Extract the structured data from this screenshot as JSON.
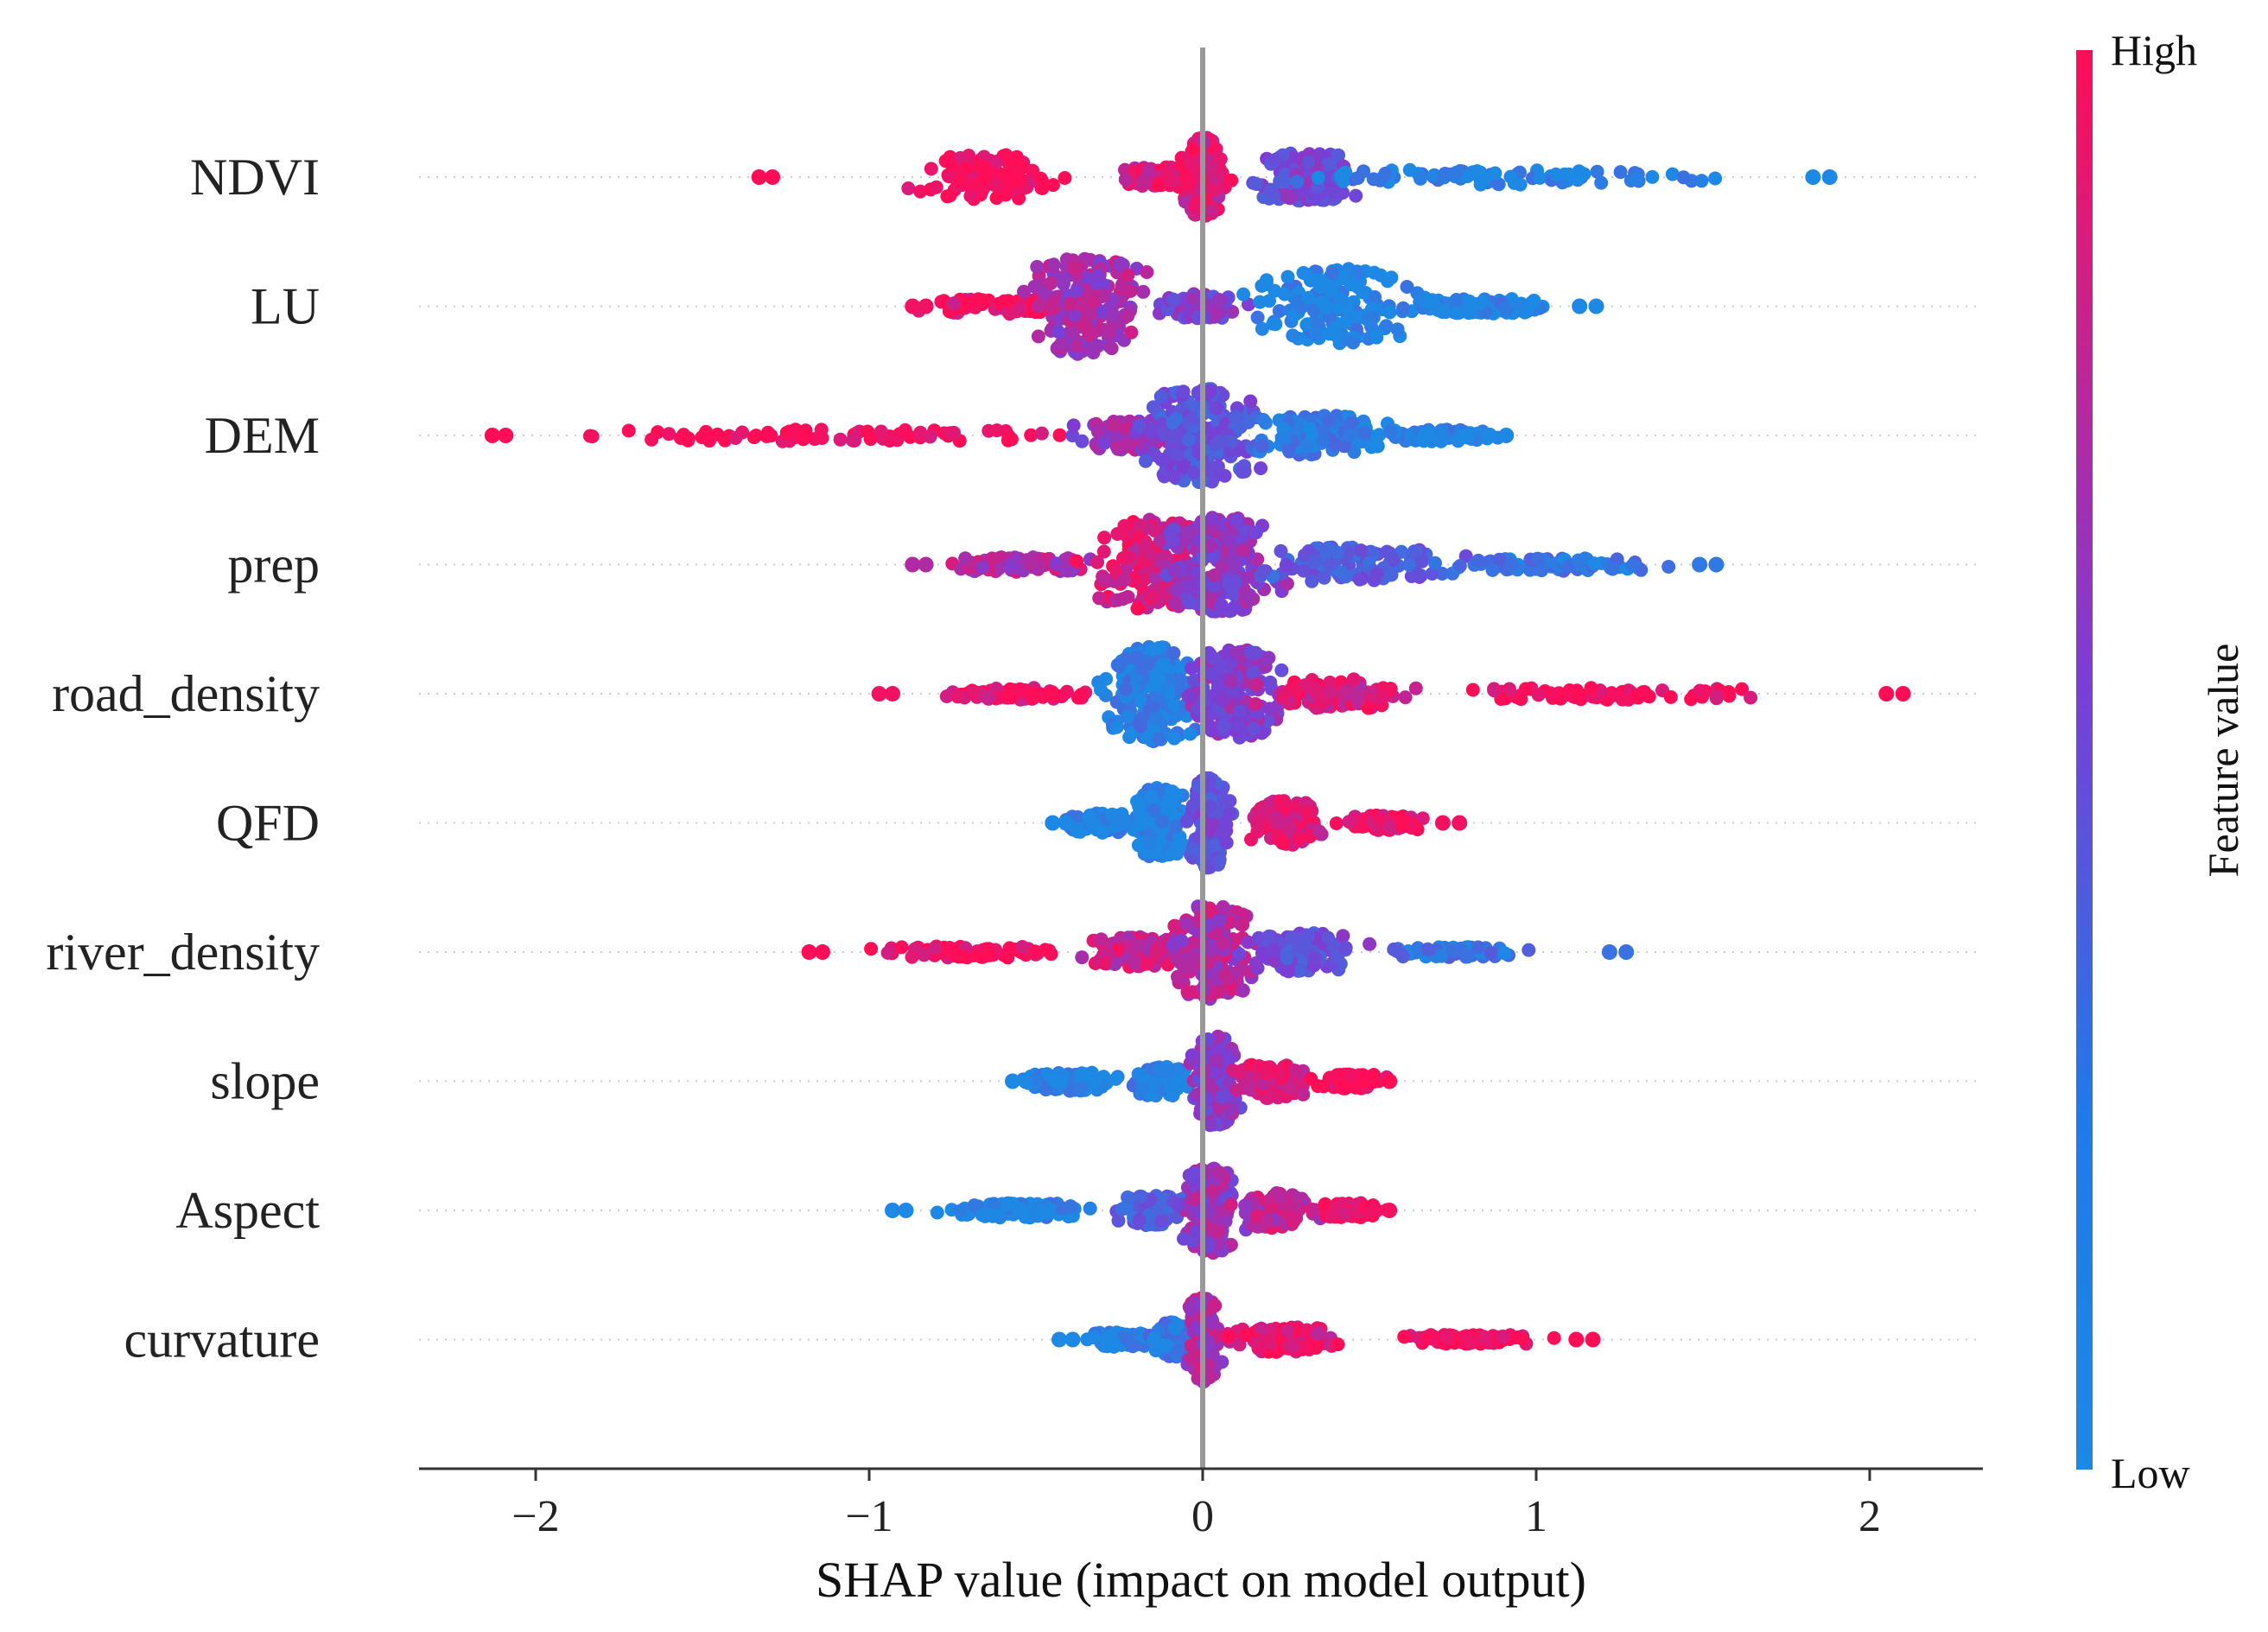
{
  "chart_data": {
    "type": "scatter",
    "subtype": "shap-beeswarm-summary",
    "xlabel": "SHAP value (impact on model output)",
    "xlim": [
      -2.3,
      2.3
    ],
    "xticks": [
      -2,
      -1,
      0,
      1,
      2
    ],
    "xtick_labels": [
      "−2",
      "−1",
      "0",
      "1",
      "2"
    ],
    "zero_line": 0,
    "colorbar": {
      "title": "Feature value",
      "high_label": "High",
      "low_label": "Low",
      "high_color": "#ff0d57",
      "mid_color": "#7a3ed6",
      "low_color": "#1e88e5"
    },
    "features": [
      {
        "name": "NDVI",
        "min": -1.33,
        "max": 1.88,
        "clusters": [
          {
            "center": -0.65,
            "spread": 0.2,
            "width": 0.45,
            "value": 1.0
          },
          {
            "center": -0.1,
            "spread": 0.15,
            "width": 0.2,
            "value": 0.9
          },
          {
            "center": 0.0,
            "spread": 0.05,
            "width": 0.8,
            "value": 0.85
          },
          {
            "center": 0.3,
            "spread": 0.15,
            "width": 0.5,
            "value": 0.45
          },
          {
            "center": 0.9,
            "spread": 0.55,
            "width": 0.15,
            "value": 0.0
          }
        ]
      },
      {
        "name": "LU",
        "min": -0.87,
        "max": 1.18,
        "clusters": [
          {
            "center": -0.6,
            "spread": 0.2,
            "width": 0.15,
            "value": 0.95
          },
          {
            "center": -0.35,
            "spread": 0.15,
            "width": 1.0,
            "value": 0.65
          },
          {
            "center": 0.0,
            "spread": 0.1,
            "width": 0.25,
            "value": 0.5
          },
          {
            "center": 0.4,
            "spread": 0.2,
            "width": 0.75,
            "value": 0.0
          },
          {
            "center": 0.85,
            "spread": 0.2,
            "width": 0.15,
            "value": 0.0
          }
        ]
      },
      {
        "name": "DEM",
        "min": -2.13,
        "max": 0.91,
        "clusters": [
          {
            "center": -1.2,
            "spread": 0.7,
            "width": 0.12,
            "value": 1.0
          },
          {
            "center": -0.2,
            "spread": 0.15,
            "width": 0.3,
            "value": 0.6
          },
          {
            "center": 0.0,
            "spread": 0.15,
            "width": 0.95,
            "value": 0.35
          },
          {
            "center": 0.35,
            "spread": 0.2,
            "width": 0.4,
            "value": 0.1
          },
          {
            "center": 0.7,
            "spread": 0.15,
            "width": 0.12,
            "value": 0.0
          }
        ]
      },
      {
        "name": "prep",
        "min": -0.87,
        "max": 1.54,
        "clusters": [
          {
            "center": -0.55,
            "spread": 0.2,
            "width": 0.15,
            "value": 0.7
          },
          {
            "center": -0.15,
            "spread": 0.15,
            "width": 0.9,
            "value": 0.85
          },
          {
            "center": 0.05,
            "spread": 0.15,
            "width": 0.95,
            "value": 0.55
          },
          {
            "center": 0.45,
            "spread": 0.25,
            "width": 0.35,
            "value": 0.3
          },
          {
            "center": 1.1,
            "spread": 0.3,
            "width": 0.13,
            "value": 0.1
          }
        ]
      },
      {
        "name": "road_density",
        "min": -0.97,
        "max": 2.1,
        "clusters": [
          {
            "center": -0.55,
            "spread": 0.2,
            "width": 0.12,
            "value": 0.95
          },
          {
            "center": -0.15,
            "spread": 0.13,
            "width": 0.95,
            "value": 0.05
          },
          {
            "center": 0.1,
            "spread": 0.12,
            "width": 0.9,
            "value": 0.55
          },
          {
            "center": 0.4,
            "spread": 0.2,
            "width": 0.3,
            "value": 0.85
          },
          {
            "center": 1.2,
            "spread": 0.45,
            "width": 0.12,
            "value": 1.0
          }
        ]
      },
      {
        "name": "QFD",
        "min": -0.45,
        "max": 0.77,
        "clusters": [
          {
            "center": -0.3,
            "spread": 0.1,
            "width": 0.2,
            "value": 0.0
          },
          {
            "center": -0.13,
            "spread": 0.07,
            "width": 0.7,
            "value": 0.0
          },
          {
            "center": 0.02,
            "spread": 0.05,
            "width": 0.9,
            "value": 0.4
          },
          {
            "center": 0.25,
            "spread": 0.1,
            "width": 0.45,
            "value": 0.9
          },
          {
            "center": 0.55,
            "spread": 0.12,
            "width": 0.15,
            "value": 0.95
          }
        ]
      },
      {
        "name": "river_density",
        "min": -1.18,
        "max": 1.27,
        "clusters": [
          {
            "center": -0.7,
            "spread": 0.25,
            "width": 0.12,
            "value": 1.0
          },
          {
            "center": -0.2,
            "spread": 0.15,
            "width": 0.3,
            "value": 0.8
          },
          {
            "center": 0.03,
            "spread": 0.1,
            "width": 0.95,
            "value": 0.7
          },
          {
            "center": 0.3,
            "spread": 0.15,
            "width": 0.4,
            "value": 0.4
          },
          {
            "center": 0.75,
            "spread": 0.2,
            "width": 0.1,
            "value": 0.15
          }
        ]
      },
      {
        "name": "slope",
        "min": -0.57,
        "max": 0.56,
        "clusters": [
          {
            "center": -0.4,
            "spread": 0.12,
            "width": 0.2,
            "value": 0.0
          },
          {
            "center": -0.12,
            "spread": 0.08,
            "width": 0.3,
            "value": 0.05
          },
          {
            "center": 0.04,
            "spread": 0.06,
            "width": 0.9,
            "value": 0.55
          },
          {
            "center": 0.2,
            "spread": 0.1,
            "width": 0.35,
            "value": 0.85
          },
          {
            "center": 0.45,
            "spread": 0.08,
            "width": 0.15,
            "value": 1.0
          }
        ]
      },
      {
        "name": "Aspect",
        "min": -0.93,
        "max": 0.56,
        "clusters": [
          {
            "center": -0.55,
            "spread": 0.18,
            "width": 0.15,
            "value": 0.0
          },
          {
            "center": -0.15,
            "spread": 0.1,
            "width": 0.3,
            "value": 0.3
          },
          {
            "center": 0.02,
            "spread": 0.08,
            "width": 0.85,
            "value": 0.6
          },
          {
            "center": 0.22,
            "spread": 0.1,
            "width": 0.35,
            "value": 0.75
          },
          {
            "center": 0.45,
            "spread": 0.1,
            "width": 0.15,
            "value": 0.95
          }
        ]
      },
      {
        "name": "curvature",
        "min": -0.43,
        "max": 1.17,
        "clusters": [
          {
            "center": -0.25,
            "spread": 0.1,
            "width": 0.15,
            "value": 0.0
          },
          {
            "center": -0.08,
            "spread": 0.06,
            "width": 0.35,
            "value": 0.1
          },
          {
            "center": 0.0,
            "spread": 0.04,
            "width": 0.85,
            "value": 0.7
          },
          {
            "center": 0.25,
            "spread": 0.15,
            "width": 0.25,
            "value": 0.9
          },
          {
            "center": 0.8,
            "spread": 0.2,
            "width": 0.1,
            "value": 1.0
          }
        ]
      }
    ]
  }
}
